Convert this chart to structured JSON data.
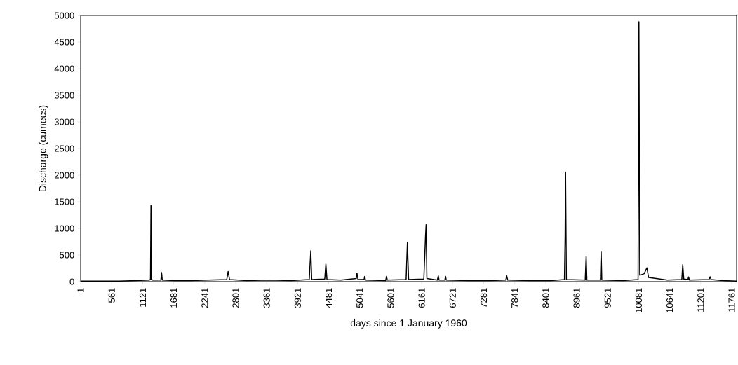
{
  "chart_data": {
    "type": "line",
    "xlabel": "days since 1 January 1960",
    "ylabel": "Discharge (cumecs)",
    "x": [
      1,
      300,
      700,
      1000,
      1240,
      1262,
      1271,
      1280,
      1300,
      1450,
      1462,
      1475,
      1700,
      2000,
      2300,
      2640,
      2664,
      2690,
      3000,
      3400,
      3800,
      4130,
      4158,
      4175,
      4410,
      4430,
      4450,
      4700,
      4980,
      4992,
      5010,
      5120,
      5132,
      5145,
      5510,
      5526,
      5540,
      5880,
      5903,
      5925,
      6200,
      6230,
      6241,
      6255,
      6445,
      6461,
      6475,
      6580,
      6592,
      6605,
      7000,
      7400,
      7680,
      7697,
      7715,
      8100,
      8500,
      8740,
      8752,
      8760,
      8775,
      9115,
      9132,
      9145,
      9390,
      9403,
      9415,
      9800,
      10070,
      10085,
      10100,
      10180,
      10229,
      10260,
      10600,
      10860,
      10877,
      10895,
      10970,
      10983,
      10995,
      11350,
      11371,
      11390,
      11600,
      11850
    ],
    "values": [
      10,
      10,
      10,
      20,
      30,
      40,
      1430,
      40,
      30,
      30,
      170,
      30,
      20,
      20,
      30,
      40,
      190,
      40,
      20,
      30,
      20,
      40,
      580,
      40,
      50,
      330,
      40,
      30,
      60,
      160,
      40,
      40,
      100,
      30,
      20,
      100,
      30,
      40,
      730,
      40,
      50,
      840,
      1070,
      60,
      30,
      110,
      30,
      30,
      100,
      30,
      20,
      20,
      30,
      110,
      30,
      20,
      20,
      40,
      840,
      2060,
      40,
      30,
      480,
      30,
      30,
      570,
      30,
      20,
      40,
      4880,
      120,
      150,
      260,
      80,
      30,
      40,
      320,
      50,
      40,
      90,
      30,
      40,
      90,
      40,
      20,
      10
    ],
    "color": "#000000",
    "xlim": [
      1,
      11850
    ],
    "xticks": [
      1,
      561,
      1121,
      1681,
      2241,
      2801,
      3361,
      3921,
      4481,
      5041,
      5601,
      6161,
      6721,
      7281,
      7841,
      8401,
      8961,
      9521,
      10081,
      10641,
      11201,
      11761
    ],
    "ylim": [
      0,
      5000
    ],
    "yticks": [
      0,
      500,
      1000,
      1500,
      2000,
      2500,
      3000,
      3500,
      4000,
      4500,
      5000
    ],
    "grid": false,
    "marker": "none",
    "line_style": "solid"
  }
}
